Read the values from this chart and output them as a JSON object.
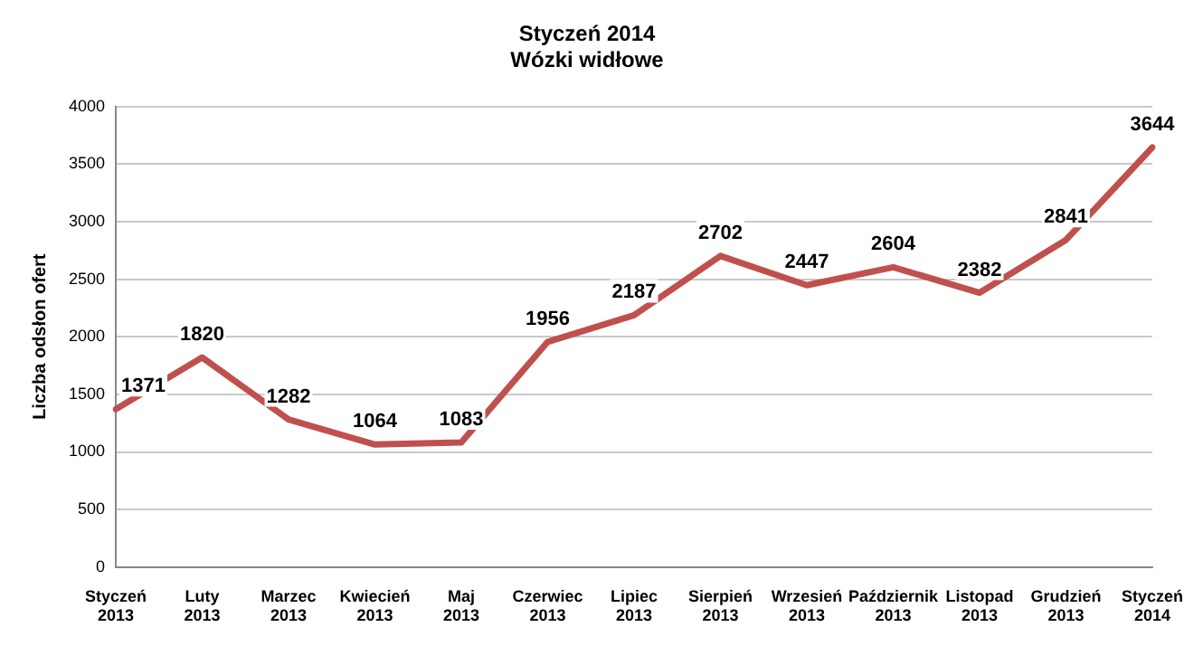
{
  "chart_data": {
    "type": "line",
    "title": "Styczeń 2014",
    "subtitle": "Wózki widłowe",
    "ylabel": "Liczba odsłon ofert",
    "categories": [
      "Styczeń 2013",
      "Luty 2013",
      "Marzec 2013",
      "Kwiecień 2013",
      "Maj 2013",
      "Czerwiec 2013",
      "Lipiec 2013",
      "Sierpień 2013",
      "Wrzesień 2013",
      "Październik 2013",
      "Listopad 2013",
      "Grudzień 2013",
      "Styczeń 2014"
    ],
    "series": [
      {
        "color": "#c0504d",
        "values": [
          1371,
          1820,
          1282,
          1064,
          1083,
          1956,
          2187,
          2702,
          2447,
          2604,
          2382,
          2841,
          3644
        ]
      }
    ],
    "ylim": [
      0,
      4000
    ],
    "yticks": [
      0,
      500,
      1000,
      1500,
      2000,
      2500,
      3000,
      3500,
      4000
    ],
    "grid": "y",
    "legend": false,
    "marker": "none",
    "line_style": "solid",
    "data_labels": true
  }
}
